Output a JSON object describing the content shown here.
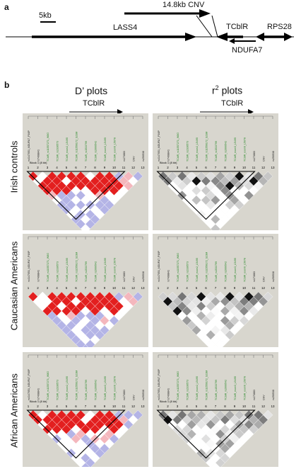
{
  "panel_a": {
    "label": "a",
    "scale_bar": "5kb",
    "cnv": "14.8kb CNV",
    "genes": [
      "LASS4",
      "TCblR",
      "RPS28",
      "NDUFA7"
    ]
  },
  "panel_b": {
    "label": "b",
    "col_titles": {
      "dprime": "D’ plots",
      "r2_main": "r",
      "r2_sup": "2",
      "r2_rest": " plots"
    },
    "arrow_gene": "TCblR",
    "rows": [
      "Irish controls",
      "Caucasian Americans",
      "African Americans"
    ],
    "snps": [
      "rs4147051_NDUFA7_P16P",
      "rs7408841",
      "TCblR_rs11557271_W8G",
      "TCblR_rs2336573",
      "TCblR_exon2_L5495",
      "TCblR_rs11556172_S23M",
      "TCblR_rs1533799",
      "TCblR_rs2000542",
      "TCblR_exon3_L5495",
      "TCblR_exon6_L5078",
      "rs173883",
      "CNV",
      "rs250538"
    ],
    "block_labels": {
      "irish_d": "Block 1 (8 kb)",
      "irish_r2": "Block 1 (8 kb)",
      "african_d": "Block 1 (8 kb)",
      "african_r2": "Block 1 (8 kb)"
    },
    "index_labels": [
      "1",
      "2",
      "3",
      "4",
      "5",
      "6",
      "7",
      "8",
      "9",
      "10",
      "11",
      "12",
      "13"
    ],
    "colors": {
      "panel_bg": "#d8d6ce",
      "high_ld": "#e31f1f",
      "low_lod": "#b4b4e6",
      "pink": "#f4b7bd",
      "white": "#ffffff",
      "snp_green": "#2a8a2a",
      "r2_dark": "#111111"
    }
  }
}
